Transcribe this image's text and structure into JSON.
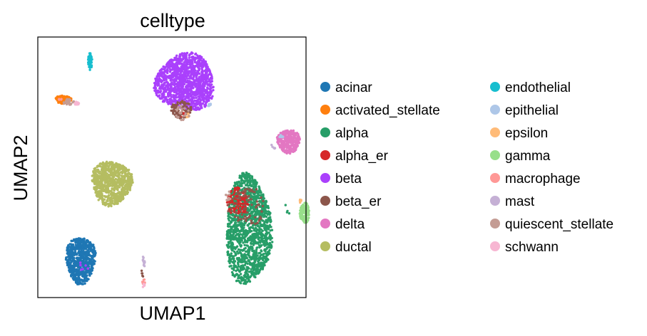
{
  "chart_data": {
    "type": "scatter",
    "title": "celltype",
    "xlabel": "UMAP1",
    "ylabel": "UMAP2",
    "grid": false,
    "show_ticks": false,
    "legend_placement": "right, two columns",
    "series": [
      {
        "name": "acinar",
        "color": "#1f77b4",
        "clusters": [
          {
            "cx": 1.6,
            "cy": 1.45,
            "rx": 0.55,
            "ry": 0.9,
            "n": 700
          }
        ]
      },
      {
        "name": "activated_stellate",
        "color": "#ff7f0e",
        "clusters": [
          {
            "cx": 0.95,
            "cy": 7.6,
            "rx": 0.3,
            "ry": 0.15,
            "n": 140
          }
        ]
      },
      {
        "name": "alpha",
        "color": "#279e68",
        "clusters": [
          {
            "cx": 7.85,
            "cy": 2.6,
            "rx": 0.85,
            "ry": 2.1,
            "n": 1400
          },
          {
            "cx": 9.3,
            "cy": 3.4,
            "rx": 0.15,
            "ry": 0.3,
            "n": 4
          }
        ]
      },
      {
        "name": "alpha_er",
        "color": "#d62728",
        "clusters": [
          {
            "cx": 7.45,
            "cy": 3.7,
            "rx": 0.4,
            "ry": 0.55,
            "n": 120
          },
          {
            "cx": 5.4,
            "cy": 7.0,
            "rx": 0.1,
            "ry": 0.1,
            "n": 6
          }
        ]
      },
      {
        "name": "beta",
        "color": "#aa40fc",
        "clusters": [
          {
            "cx": 5.5,
            "cy": 8.25,
            "rx": 1.1,
            "ry": 1.1,
            "n": 1300
          },
          {
            "cx": 1.7,
            "cy": 1.2,
            "rx": 0.2,
            "ry": 0.2,
            "n": 6
          }
        ]
      },
      {
        "name": "beta_er",
        "color": "#8c564b",
        "clusters": [
          {
            "cx": 5.35,
            "cy": 7.2,
            "rx": 0.4,
            "ry": 0.35,
            "n": 90
          },
          {
            "cx": 7.8,
            "cy": 3.5,
            "rx": 0.7,
            "ry": 0.7,
            "n": 80
          },
          {
            "cx": 3.9,
            "cy": 1.0,
            "rx": 0.05,
            "ry": 0.2,
            "n": 5
          }
        ]
      },
      {
        "name": "delta",
        "color": "#e377c2",
        "clusters": [
          {
            "cx": 9.35,
            "cy": 6.0,
            "rx": 0.42,
            "ry": 0.45,
            "n": 320
          }
        ]
      },
      {
        "name": "ductal",
        "color": "#b5bd61",
        "clusters": [
          {
            "cx": 2.75,
            "cy": 4.4,
            "rx": 0.75,
            "ry": 0.85,
            "n": 800
          }
        ]
      },
      {
        "name": "endothelial",
        "color": "#17becf",
        "clusters": [
          {
            "cx": 1.95,
            "cy": 9.05,
            "rx": 0.08,
            "ry": 0.35,
            "n": 60
          }
        ]
      },
      {
        "name": "epithelial",
        "color": "#aec7e8",
        "clusters": [
          {
            "cx": 9.1,
            "cy": 6.2,
            "rx": 0.1,
            "ry": 0.1,
            "n": 8
          },
          {
            "cx": 6.4,
            "cy": 7.4,
            "rx": 0.1,
            "ry": 0.05,
            "n": 8
          }
        ]
      },
      {
        "name": "epsilon",
        "color": "#ffbb78",
        "clusters": [
          {
            "cx": 9.8,
            "cy": 3.7,
            "rx": 0.05,
            "ry": 0.1,
            "n": 6
          },
          {
            "cx": 5.6,
            "cy": 7.0,
            "rx": 0.1,
            "ry": 0.1,
            "n": 5
          }
        ]
      },
      {
        "name": "gamma",
        "color": "#98df8a",
        "clusters": [
          {
            "cx": 9.95,
            "cy": 3.25,
            "rx": 0.18,
            "ry": 0.38,
            "n": 130
          }
        ]
      },
      {
        "name": "macrophage",
        "color": "#ff9896",
        "clusters": [
          {
            "cx": 3.95,
            "cy": 0.6,
            "rx": 0.05,
            "ry": 0.15,
            "n": 10
          },
          {
            "cx": 0.8,
            "cy": 7.6,
            "rx": 0.1,
            "ry": 0.08,
            "n": 4
          }
        ]
      },
      {
        "name": "mast",
        "color": "#c5b0d5",
        "clusters": [
          {
            "cx": 3.95,
            "cy": 1.35,
            "rx": 0.05,
            "ry": 0.25,
            "n": 14
          },
          {
            "cx": 8.8,
            "cy": 5.8,
            "rx": 0.1,
            "ry": 0.15,
            "n": 5
          }
        ]
      },
      {
        "name": "quiescent_stellate",
        "color": "#c49c94",
        "clusters": [
          {
            "cx": 1.15,
            "cy": 7.5,
            "rx": 0.2,
            "ry": 0.12,
            "n": 25
          },
          {
            "cx": 5.4,
            "cy": 7.1,
            "rx": 0.3,
            "ry": 0.3,
            "n": 20
          },
          {
            "cx": 7.1,
            "cy": 3.9,
            "rx": 0.1,
            "ry": 0.2,
            "n": 8
          }
        ]
      },
      {
        "name": "schwann",
        "color": "#f7b6d2",
        "clusters": [
          {
            "cx": 1.45,
            "cy": 7.45,
            "rx": 0.08,
            "ry": 0.06,
            "n": 10
          },
          {
            "cx": 3.95,
            "cy": 0.45,
            "rx": 0.05,
            "ry": 0.1,
            "n": 5
          }
        ]
      }
    ],
    "xlim": [
      0,
      10
    ],
    "ylim": [
      0,
      10
    ]
  }
}
